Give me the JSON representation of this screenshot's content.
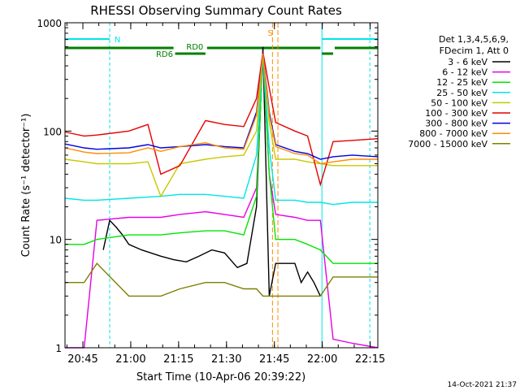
{
  "chart_data": {
    "type": "line",
    "title": "RHESSI Observing Summary Count Rates",
    "xlabel": "Start Time (10-Apr-06 20:39:22)",
    "ylabel": "Count Rate (s⁻¹ detector⁻¹)",
    "yscale": "log",
    "ylim": [
      1,
      1000
    ],
    "xlim_minutes_from_start": [
      0,
      98
    ],
    "x_tick_labels": [
      "20:45",
      "21:00",
      "21:15",
      "21:30",
      "21:45",
      "22:00",
      "22:15"
    ],
    "x_tick_minutes_from_start": [
      5.6,
      20.6,
      35.6,
      50.6,
      65.6,
      80.6,
      95.6
    ],
    "y_tick_labels": [
      "1",
      "10",
      "100",
      "1000"
    ],
    "y_tick_values": [
      1,
      10,
      100,
      1000
    ],
    "legend_header": [
      "Det 1,3,4,5,6,9,",
      "FDecim 1, Att 0"
    ],
    "legend_placement": "right",
    "timestamp": "14-Oct-2021 21:37",
    "flags": [
      {
        "label": "N",
        "color": "#00e5e5",
        "type": "night"
      },
      {
        "label": "RD0",
        "color": "#007f00",
        "type": "data-gap"
      },
      {
        "label": "RD6",
        "color": "#007f00",
        "type": "data-gap"
      },
      {
        "label": "S",
        "color": "#ff8c00",
        "type": "saa"
      }
    ],
    "series": [
      {
        "name": "3 - 6 keV",
        "color": "#000000",
        "x": [
          12,
          14,
          16,
          18,
          20,
          24,
          30,
          34,
          38,
          42,
          46,
          50,
          54,
          57,
          60,
          62,
          64,
          66,
          72,
          74,
          76,
          78,
          80
        ],
        "y": [
          8,
          15,
          13,
          11,
          9,
          8,
          7,
          6.5,
          6.2,
          7,
          8,
          7.5,
          5.5,
          6,
          20,
          600,
          3,
          6,
          6,
          4,
          5,
          4,
          3
        ]
      },
      {
        "name": "6 - 12 keV",
        "color": "#e600e6",
        "x": [
          0,
          6,
          10,
          20,
          30,
          36,
          44,
          50,
          56,
          60,
          62,
          64,
          66,
          72,
          76,
          80,
          84,
          90,
          98
        ],
        "y": [
          1,
          1,
          15,
          16,
          16,
          17,
          18,
          17,
          16,
          30,
          500,
          40,
          17,
          16,
          15,
          15,
          1.2,
          1.1,
          1
        ]
      },
      {
        "name": "12 - 25 keV",
        "color": "#00e600",
        "x": [
          0,
          6,
          10,
          20,
          30,
          36,
          44,
          50,
          56,
          60,
          62,
          64,
          66,
          72,
          76,
          80,
          84,
          90,
          98
        ],
        "y": [
          9,
          9,
          10,
          11,
          11,
          11.5,
          12,
          12,
          11,
          25,
          520,
          40,
          10,
          10,
          9,
          8,
          6,
          6,
          6
        ]
      },
      {
        "name": "25 - 50 keV",
        "color": "#00e5e5",
        "x": [
          0,
          6,
          10,
          20,
          30,
          36,
          44,
          50,
          56,
          60,
          62,
          64,
          66,
          72,
          76,
          80,
          84,
          90,
          98
        ],
        "y": [
          24,
          23,
          23,
          24,
          25,
          26,
          26,
          25,
          24,
          60,
          520,
          70,
          23,
          23,
          22,
          22,
          21,
          22,
          22
        ]
      },
      {
        "name": "50 - 100 keV",
        "color": "#c8c800",
        "x": [
          0,
          6,
          10,
          20,
          26,
          30,
          36,
          44,
          50,
          56,
          60,
          62,
          64,
          66,
          72,
          76,
          80,
          84,
          90,
          98
        ],
        "y": [
          55,
          52,
          50,
          50,
          52,
          25,
          50,
          55,
          58,
          60,
          100,
          520,
          120,
          55,
          55,
          52,
          50,
          48,
          48,
          48
        ]
      },
      {
        "name": "100 - 300 keV",
        "color": "#e60000",
        "x": [
          0,
          6,
          10,
          20,
          26,
          30,
          36,
          44,
          50,
          56,
          60,
          62,
          64,
          66,
          72,
          76,
          80,
          84,
          90,
          98
        ],
        "y": [
          98,
          90,
          92,
          100,
          115,
          40,
          48,
          125,
          115,
          110,
          200,
          540,
          250,
          120,
          100,
          90,
          32,
          80,
          82,
          85
        ]
      },
      {
        "name": "300 - 800 keV",
        "color": "#0000e6",
        "x": [
          0,
          6,
          10,
          20,
          26,
          30,
          36,
          44,
          50,
          56,
          60,
          62,
          64,
          66,
          72,
          76,
          80,
          84,
          90,
          98
        ],
        "y": [
          76,
          70,
          68,
          70,
          75,
          70,
          72,
          75,
          72,
          70,
          150,
          530,
          150,
          75,
          65,
          62,
          55,
          58,
          60,
          58
        ]
      },
      {
        "name": "800 - 7000 keV",
        "color": "#ff8c00",
        "x": [
          0,
          6,
          10,
          20,
          26,
          30,
          36,
          44,
          50,
          56,
          60,
          62,
          64,
          66,
          72,
          76,
          80,
          84,
          90,
          98
        ],
        "y": [
          70,
          64,
          62,
          63,
          70,
          65,
          72,
          78,
          70,
          68,
          140,
          520,
          140,
          72,
          62,
          60,
          50,
          52,
          55,
          55
        ]
      },
      {
        "name": "7000 - 15000 keV",
        "color": "#7f7f00",
        "x": [
          0,
          6,
          10,
          20,
          26,
          30,
          36,
          44,
          50,
          56,
          60,
          62,
          64,
          66,
          72,
          76,
          80,
          84,
          90,
          98
        ],
        "y": [
          4,
          4,
          6,
          3,
          3,
          3,
          3.5,
          4,
          4,
          3.5,
          3.5,
          3,
          3,
          3,
          3,
          3,
          3,
          4.5,
          4.5,
          4.5
        ]
      }
    ]
  }
}
